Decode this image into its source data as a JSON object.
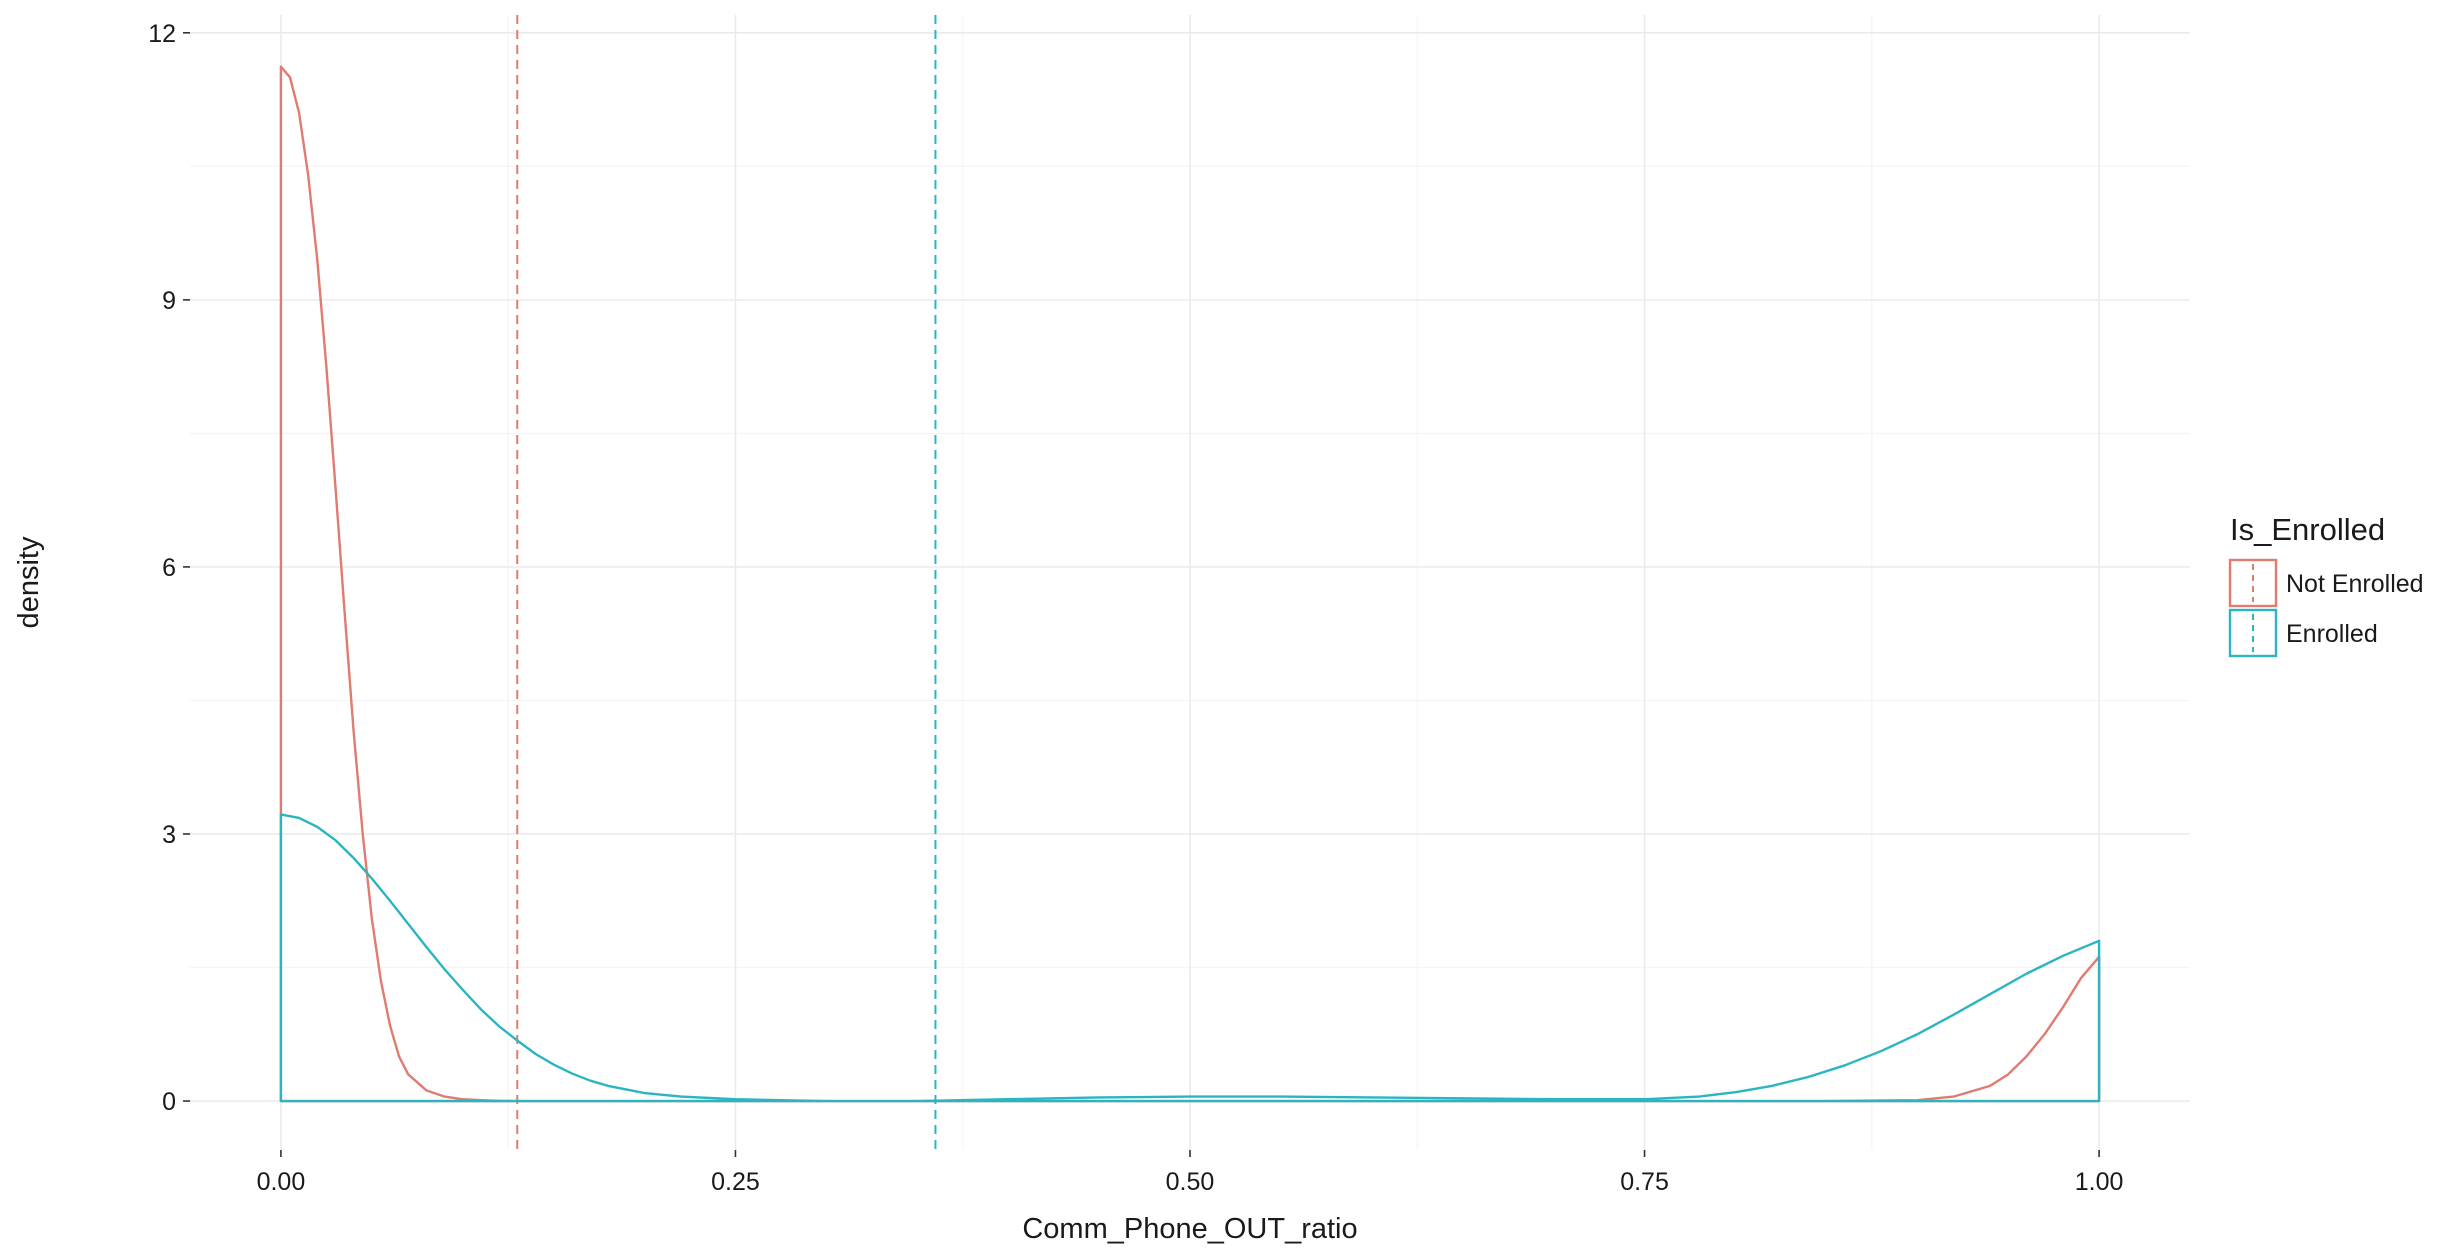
{
  "chart_data": {
    "type": "density",
    "xlabel": "Comm_Phone_OUT_ratio",
    "ylabel": "density",
    "xlim": [
      -0.05,
      1.05
    ],
    "ylim": [
      -0.55,
      12.2
    ],
    "x_ticks": [
      0.0,
      0.25,
      0.5,
      0.75,
      1.0
    ],
    "x_tick_labels": [
      "0.00",
      "0.25",
      "0.50",
      "0.75",
      "1.00"
    ],
    "y_ticks": [
      0,
      3,
      6,
      9,
      12
    ],
    "y_tick_labels": [
      "0",
      "3",
      "6",
      "9",
      "12"
    ],
    "grid": true,
    "legend": {
      "title": "Is_Enrolled",
      "position": "right",
      "entries": [
        "Not Enrolled",
        "Enrolled"
      ]
    },
    "series": [
      {
        "name": "Not Enrolled",
        "color": "#E07B70",
        "mean_line_x": 0.13,
        "x": [
          0.0,
          0.005,
          0.01,
          0.015,
          0.02,
          0.025,
          0.03,
          0.035,
          0.04,
          0.045,
          0.05,
          0.055,
          0.06,
          0.065,
          0.07,
          0.08,
          0.09,
          0.1,
          0.11,
          0.12,
          0.13,
          0.15,
          0.2,
          0.3,
          0.4,
          0.5,
          0.6,
          0.7,
          0.8,
          0.85,
          0.9,
          0.92,
          0.94,
          0.95,
          0.96,
          0.97,
          0.98,
          0.99,
          1.0
        ],
        "y": [
          11.62,
          11.5,
          11.1,
          10.4,
          9.45,
          8.25,
          6.9,
          5.5,
          4.15,
          3.0,
          2.05,
          1.35,
          0.85,
          0.5,
          0.3,
          0.12,
          0.05,
          0.02,
          0.01,
          0.003,
          0.0,
          0.0,
          0.0,
          0.0,
          0.0,
          0.0,
          0.0,
          0.0,
          0.0,
          0.0,
          0.01,
          0.05,
          0.17,
          0.3,
          0.5,
          0.75,
          1.05,
          1.38,
          1.62
        ]
      },
      {
        "name": "Enrolled",
        "color": "#2BB5C0",
        "mean_line_x": 0.36,
        "x": [
          0.0,
          0.01,
          0.02,
          0.03,
          0.04,
          0.05,
          0.06,
          0.07,
          0.08,
          0.09,
          0.1,
          0.11,
          0.12,
          0.13,
          0.14,
          0.15,
          0.16,
          0.17,
          0.18,
          0.2,
          0.22,
          0.25,
          0.3,
          0.35,
          0.4,
          0.45,
          0.5,
          0.55,
          0.6,
          0.65,
          0.7,
          0.75,
          0.78,
          0.8,
          0.82,
          0.84,
          0.86,
          0.88,
          0.9,
          0.92,
          0.94,
          0.96,
          0.98,
          1.0
        ],
        "y": [
          3.22,
          3.18,
          3.08,
          2.93,
          2.73,
          2.5,
          2.25,
          1.99,
          1.73,
          1.48,
          1.25,
          1.03,
          0.84,
          0.68,
          0.53,
          0.41,
          0.31,
          0.23,
          0.17,
          0.09,
          0.05,
          0.02,
          0.0,
          0.0,
          0.02,
          0.04,
          0.05,
          0.05,
          0.04,
          0.03,
          0.02,
          0.02,
          0.05,
          0.1,
          0.17,
          0.27,
          0.4,
          0.56,
          0.75,
          0.97,
          1.2,
          1.43,
          1.63,
          1.8
        ]
      }
    ]
  }
}
